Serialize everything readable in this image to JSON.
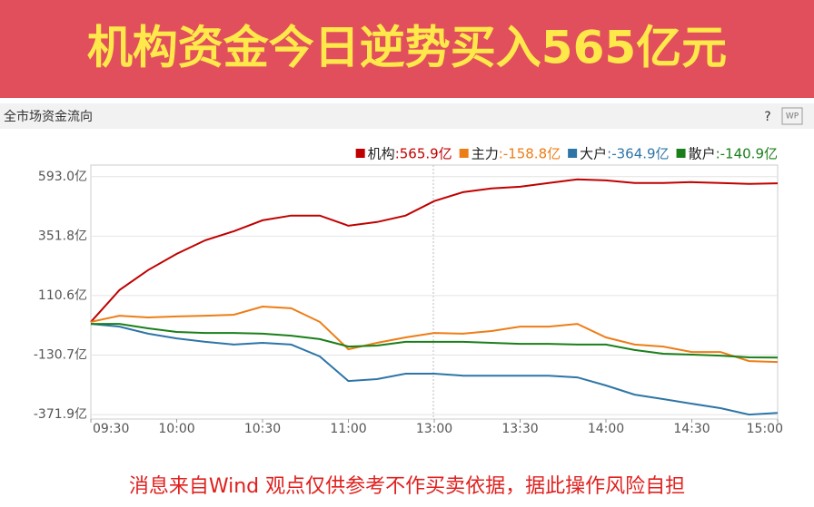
{
  "header": {
    "title": "机构资金今日逆势买入565亿元"
  },
  "panel": {
    "title": "全市场资金流向",
    "help": "?",
    "icon": "WP"
  },
  "chart_data": {
    "type": "line",
    "categories": [
      "09:30",
      null,
      null,
      "10:00",
      null,
      null,
      "10:30",
      null,
      null,
      "11:00",
      null,
      null,
      "13:00",
      null,
      null,
      "13:30",
      null,
      null,
      "14:00",
      null,
      null,
      "14:30",
      null,
      null,
      "15:00"
    ],
    "series": [
      {
        "name": "机构",
        "legend_value": ":565.9亿",
        "color": "#c00000",
        "values": [
          4,
          133,
          214,
          280,
          335,
          372,
          416,
          435,
          435,
          394,
          409,
          435,
          494,
          530,
          545,
          552,
          567,
          582,
          578,
          567,
          567,
          571,
          567,
          564,
          565.9
        ]
      },
      {
        "name": "主力",
        "legend_value": ":-158.8亿",
        "color": "#ed7d16",
        "values": [
          4,
          29,
          22,
          26,
          29,
          33,
          66,
          59,
          4,
          -107,
          -81,
          -59,
          -41,
          -44,
          -33,
          -15,
          -15,
          -4,
          -59,
          -88,
          -96,
          -118,
          -118,
          -155,
          -158.8
        ]
      },
      {
        "name": "大户",
        "legend_value": ":-364.9亿",
        "color": "#2e75a6",
        "values": [
          -4,
          -15,
          -44,
          -63,
          -77,
          -88,
          -81,
          -88,
          -136,
          -236,
          -228,
          -206,
          -206,
          -214,
          -214,
          -214,
          -214,
          -221,
          -254,
          -291,
          -309,
          -328,
          -346,
          -372,
          -364.9
        ]
      },
      {
        "name": "散户",
        "legend_value": ":-140.9亿",
        "color": "#1a7f1a",
        "values": [
          -4,
          -4,
          -22,
          -37,
          -41,
          -41,
          -44,
          -52,
          -66,
          -96,
          -92,
          -77,
          -77,
          -77,
          -81,
          -85,
          -85,
          -88,
          -88,
          -110,
          -125,
          -129,
          -133,
          -140,
          -140.9
        ]
      }
    ],
    "ylim": [
      -390,
      640
    ],
    "yticks": [
      {
        "value": 593.0,
        "label": "593.0亿"
      },
      {
        "value": 351.8,
        "label": "351.8亿"
      },
      {
        "value": 110.6,
        "label": "110.6亿"
      },
      {
        "value": -130.7,
        "label": "-130.7亿"
      },
      {
        "value": -371.9,
        "label": "-371.9亿"
      }
    ],
    "grid": true
  },
  "footer": {
    "text": "消息来自Wind  观点仅供参考不作买卖依据，据此操作风险自担"
  }
}
